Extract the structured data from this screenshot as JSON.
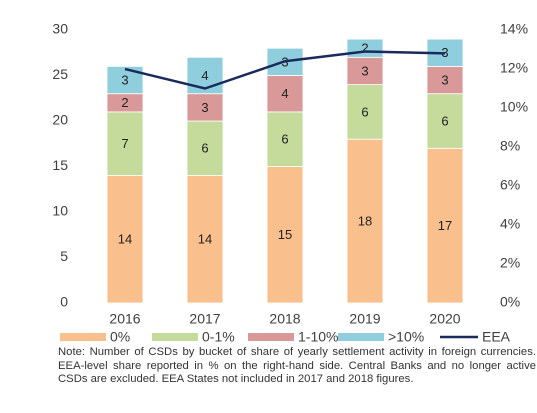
{
  "chart_data": {
    "type": "bar",
    "stacked": true,
    "categories": [
      "2016",
      "2017",
      "2018",
      "2019",
      "2020"
    ],
    "series": [
      {
        "name": "0%",
        "color": "#f9c08e",
        "values": [
          14,
          14,
          15,
          18,
          17
        ]
      },
      {
        "name": "0-1%",
        "color": "#c5db9c",
        "values": [
          7,
          6,
          6,
          6,
          6
        ]
      },
      {
        "name": "1-10%",
        "color": "#d99999",
        "values": [
          2,
          3,
          4,
          3,
          3
        ]
      },
      {
        "name": ">10%",
        "color": "#8fcfdd",
        "values": [
          3,
          4,
          3,
          2,
          3
        ]
      },
      {
        "name": "EEA",
        "type": "line",
        "axis": "y2",
        "color": "#1b2a5c",
        "values": [
          12.0,
          11.0,
          12.4,
          12.9,
          12.8
        ]
      }
    ],
    "ylim": [
      0,
      30
    ],
    "yticks": [
      0,
      5,
      10,
      15,
      20,
      25,
      30
    ],
    "y2lim": [
      0,
      14
    ],
    "y2ticks": [
      {
        "value": 0,
        "label": "0%"
      },
      {
        "value": 2,
        "label": "2%"
      },
      {
        "value": 4,
        "label": "4%"
      },
      {
        "value": 6,
        "label": "6%"
      },
      {
        "value": 8,
        "label": "8%"
      },
      {
        "value": 10,
        "label": "10%"
      },
      {
        "value": 12,
        "label": "12%"
      },
      {
        "value": 14,
        "label": "14%"
      }
    ],
    "note": "Note: Number of CSDs by bucket of share of yearly settlement activity in foreign currencies. EEA-level share reported in % on the right-hand side. Central Banks and no longer active CSDs are excluded. EEA States not included in 2017 and 2018 figures."
  }
}
